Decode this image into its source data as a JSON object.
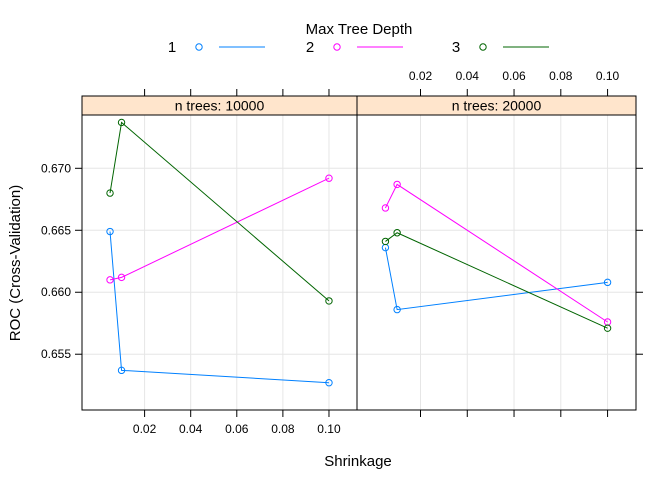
{
  "chart_data": {
    "type": "line",
    "xlabel": "Shrinkage",
    "ylabel": "ROC (Cross-Validation)",
    "xlim": [
      0,
      0.105
    ],
    "ylim": [
      0.6505,
      0.6743
    ],
    "xticks": [
      0.02,
      0.04,
      0.06,
      0.08,
      0.1
    ],
    "xtick_labels": [
      "0.02",
      "0.04",
      "0.06",
      "0.08",
      "0.10"
    ],
    "yticks": [
      0.655,
      0.66,
      0.665,
      0.67
    ],
    "ytick_labels": [
      "0.655",
      "0.660",
      "0.665",
      "0.670"
    ],
    "grid": true,
    "legend": {
      "title": "Max Tree Depth",
      "position": "top",
      "entries": [
        {
          "label": "1",
          "color": "#0080ff"
        },
        {
          "label": "2",
          "color": "#ff00ff"
        },
        {
          "label": "3",
          "color": "#006400"
        }
      ]
    },
    "strip_color": "#ffe5cc",
    "panels": [
      {
        "strip": "n trees: 10000",
        "series": [
          {
            "name": "1",
            "x": [
              0.005,
              0.01,
              0.1
            ],
            "y": [
              0.6649,
              0.6537,
              0.6527
            ]
          },
          {
            "name": "2",
            "x": [
              0.005,
              0.01,
              0.1
            ],
            "y": [
              0.661,
              0.6612,
              0.6692
            ]
          },
          {
            "name": "3",
            "x": [
              0.005,
              0.01,
              0.1
            ],
            "y": [
              0.668,
              0.6737,
              0.6593
            ]
          }
        ]
      },
      {
        "strip": "n trees: 20000",
        "series": [
          {
            "name": "1",
            "x": [
              0.005,
              0.01,
              0.1
            ],
            "y": [
              0.6636,
              0.6586,
              0.6608
            ]
          },
          {
            "name": "2",
            "x": [
              0.005,
              0.01,
              0.1
            ],
            "y": [
              0.6668,
              0.6687,
              0.6576
            ]
          },
          {
            "name": "3",
            "x": [
              0.005,
              0.01,
              0.1
            ],
            "y": [
              0.6641,
              0.6648,
              0.6571
            ]
          }
        ]
      }
    ]
  }
}
